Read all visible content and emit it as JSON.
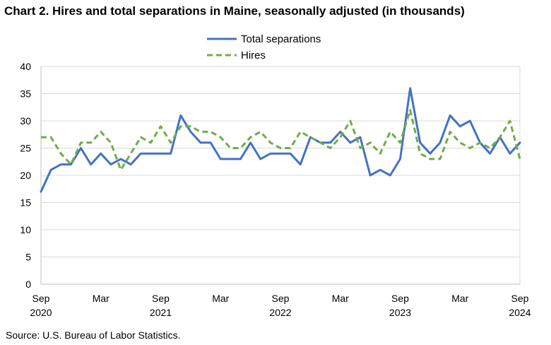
{
  "title": "Chart 2. Hires and total separations in Maine, seasonally adjusted (in thousands)",
  "source": "Source: U.S. Bureau of Labor Statistics.",
  "chart_data": {
    "type": "line",
    "title": "Chart 2. Hires and total separations in Maine, seasonally adjusted (in thousands)",
    "xlabel": "",
    "ylabel": "",
    "ylim": [
      0,
      40
    ],
    "yticks": [
      0,
      5,
      10,
      15,
      20,
      25,
      30,
      35,
      40
    ],
    "grid": "horizontal",
    "legend_position": "top-center",
    "x_start": "Sep 2020",
    "x_end": "Sep 2024",
    "x_tick_labels": [
      {
        "month": "Sep",
        "year": "2020"
      },
      {
        "month": "Mar",
        "year": ""
      },
      {
        "month": "Sep",
        "year": "2021"
      },
      {
        "month": "Mar",
        "year": ""
      },
      {
        "month": "Sep",
        "year": "2022"
      },
      {
        "month": "Mar",
        "year": ""
      },
      {
        "month": "Sep",
        "year": "2023"
      },
      {
        "month": "Mar",
        "year": ""
      },
      {
        "month": "Sep",
        "year": "2024"
      }
    ],
    "series": [
      {
        "name": "Total separations",
        "color": "#4472C4",
        "style": "solid",
        "values": [
          17,
          21,
          22,
          22,
          25,
          22,
          24,
          22,
          23,
          22,
          24,
          24,
          24,
          24,
          31,
          28,
          26,
          26,
          23,
          23,
          23,
          26,
          23,
          24,
          24,
          24,
          22,
          27,
          26,
          26,
          28,
          26,
          27,
          20,
          21,
          20,
          23,
          36,
          26,
          24,
          26,
          31,
          29,
          30,
          26,
          24,
          27,
          24,
          26
        ]
      },
      {
        "name": "Hires",
        "color": "#70AD47",
        "style": "dashed",
        "values": [
          27,
          27,
          24,
          22,
          26,
          26,
          28,
          26,
          21,
          24,
          27,
          26,
          29,
          26,
          29,
          29,
          28,
          28,
          27,
          25,
          25,
          27,
          28,
          26,
          25,
          25,
          28,
          27,
          26,
          25,
          27,
          30,
          25,
          26,
          24,
          28,
          26,
          32,
          24,
          23,
          23,
          28,
          26,
          25,
          26,
          25,
          27,
          30,
          23
        ]
      }
    ]
  }
}
